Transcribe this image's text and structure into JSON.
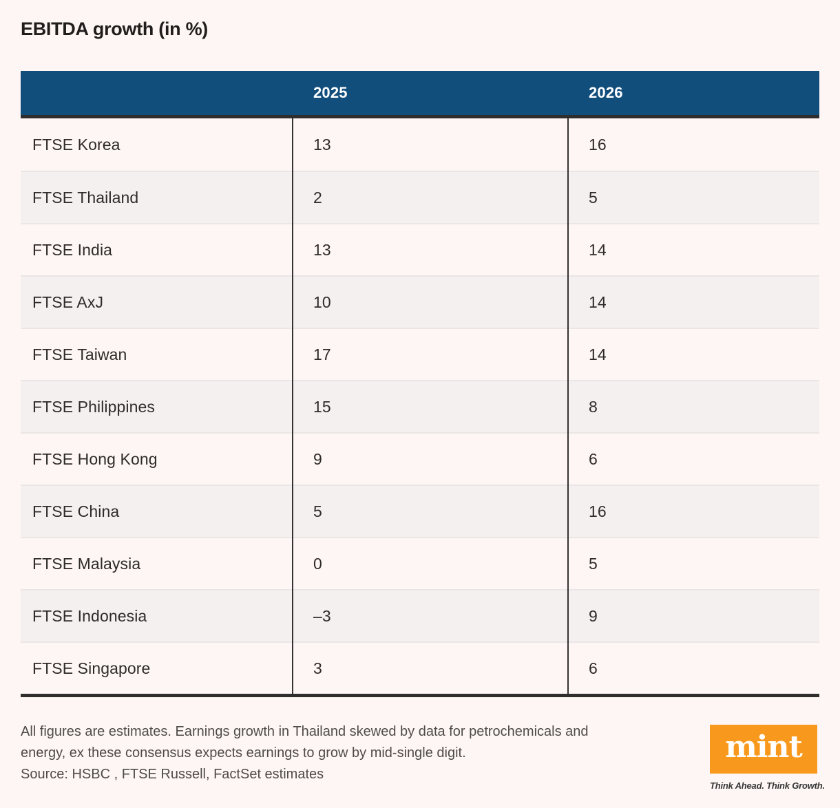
{
  "title": "EBITDA growth (in %)",
  "table": {
    "columns": [
      "2025",
      "2026"
    ],
    "rows": [
      {
        "label": "FTSE Korea",
        "v2025": "13",
        "v2026": "16"
      },
      {
        "label": "FTSE Thailand",
        "v2025": "2",
        "v2026": "5"
      },
      {
        "label": "FTSE India",
        "v2025": "13",
        "v2026": "14"
      },
      {
        "label": "FTSE AxJ",
        "v2025": "10",
        "v2026": "14"
      },
      {
        "label": "FTSE Taiwan",
        "v2025": "17",
        "v2026": "14"
      },
      {
        "label": "FTSE Philippines",
        "v2025": "15",
        "v2026": "8"
      },
      {
        "label": "FTSE Hong Kong",
        "v2025": "9",
        "v2026": "6"
      },
      {
        "label": "FTSE China",
        "v2025": "5",
        "v2026": "16"
      },
      {
        "label": "FTSE Malaysia",
        "v2025": "0",
        "v2026": "5"
      },
      {
        "label": "FTSE Indonesia",
        "v2025": "–3",
        "v2026": "9"
      },
      {
        "label": "FTSE Singapore",
        "v2025": "3",
        "v2026": "6"
      }
    ]
  },
  "footnote": "All figures are estimates. Earnings growth in Thailand skewed by data for petrochemicals and\nenergy, ex these consensus expects earnings to grow by mid-single digit.",
  "source": "Source: HSBC , FTSE Russell, FactSet estimates",
  "branding": {
    "logo_text": "mint",
    "tagline": "Think Ahead. Think Growth."
  },
  "colors": {
    "page_background": "#FDF6F4",
    "header_background": "#124E7C",
    "header_text": "#FFFFFF",
    "alt_row_background": "#F4F0EF",
    "dark_border": "#2F2D2D",
    "row_separator": "#EAE6E5",
    "body_text": "#2E2B2A",
    "note_text": "#4F4B4A",
    "brand_orange": "#F8991D"
  },
  "chart_data": {
    "type": "table",
    "title": "EBITDA growth (in %)",
    "columns": [
      "",
      "2025",
      "2026"
    ],
    "rows": [
      [
        "FTSE Korea",
        13,
        16
      ],
      [
        "FTSE Thailand",
        2,
        5
      ],
      [
        "FTSE India",
        13,
        14
      ],
      [
        "FTSE AxJ",
        10,
        14
      ],
      [
        "FTSE Taiwan",
        17,
        14
      ],
      [
        "FTSE Philippines",
        15,
        8
      ],
      [
        "FTSE Hong Kong",
        9,
        6
      ],
      [
        "FTSE China",
        5,
        16
      ],
      [
        "FTSE Malaysia",
        0,
        5
      ],
      [
        "FTSE Indonesia",
        -3,
        9
      ],
      [
        "FTSE Singapore",
        3,
        6
      ]
    ],
    "notes": "All figures are estimates. Earnings growth in Thailand skewed by data for petrochemicals and energy, ex these consensus expects earnings to grow by mid-single digit.",
    "source": "Source: HSBC , FTSE Russell, FactSet estimates"
  }
}
